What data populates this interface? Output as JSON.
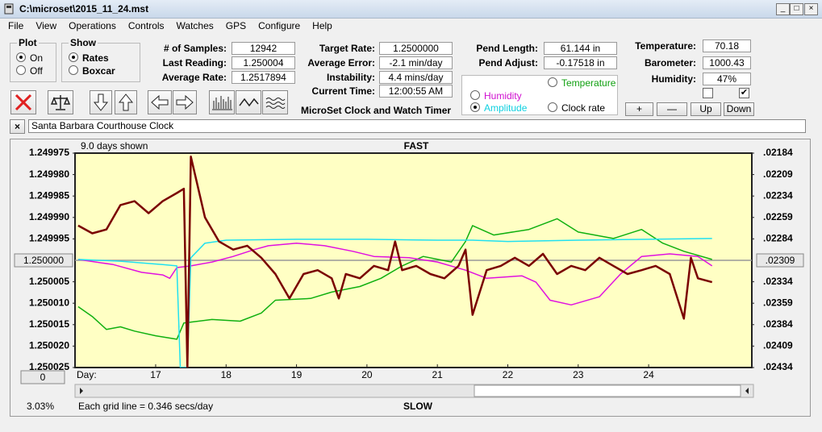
{
  "window": {
    "title": "C:\\microset\\2015_11_24.mst"
  },
  "menu": [
    "File",
    "View",
    "Operations",
    "Controls",
    "Watches",
    "GPS",
    "Configure",
    "Help"
  ],
  "plot_group": {
    "label": "Plot",
    "options": [
      "On",
      "Off"
    ]
  },
  "show_group": {
    "label": "Show",
    "options": [
      "Rates",
      "Boxcar"
    ]
  },
  "stats": [
    {
      "label": "# of Samples:",
      "value": "12942"
    },
    {
      "label": "Last Reading:",
      "value": "1.250004"
    },
    {
      "label": "Average Rate:",
      "value": "1.2517894"
    }
  ],
  "rates": [
    {
      "label": "Target Rate:",
      "value": "1.2500000"
    },
    {
      "label": "Average Error:",
      "value": "-2.1 min/day"
    },
    {
      "label": "Instability:",
      "value": "4.4 mins/day"
    },
    {
      "label": "Current Time:",
      "value": "12:00:55 AM"
    }
  ],
  "pendulum": [
    {
      "label": "Pend Length:",
      "value": "61.144 in"
    },
    {
      "label": "Pend Adjust:",
      "value": "-0.17518 in"
    }
  ],
  "environment": [
    {
      "label": "Temperature:",
      "value": "70.18"
    },
    {
      "label": "Barometer:",
      "value": "1000.43"
    },
    {
      "label": "Humidity:",
      "value": "47%"
    }
  ],
  "buttons": [
    "+",
    "—",
    "Up",
    "Down"
  ],
  "app_name": "MicroSet Clock and Watch Timer",
  "watch_name": "Santa Barbara Courthouse Clock",
  "chart_data": {
    "type": "line",
    "top_label": "FAST",
    "bottom_label": "SLOW",
    "days_shown": "9.0 days shown",
    "x_label": "Day:",
    "zoom": "0",
    "xlim": [
      15.855,
      25.465
    ],
    "xticks": [
      17,
      18,
      19,
      20,
      21,
      22,
      23,
      24
    ],
    "ylim": [
      1.250025,
      1.249975
    ],
    "yticks": [
      1.249975,
      {
        "value": 1.24998,
        "label": "1.249980"
      },
      1.249985,
      {
        "value": 1.24999,
        "label": "1.249990"
      },
      1.249995,
      {
        "value": 1.25,
        "label": "1.250000"
      },
      1.250005,
      {
        "value": 1.25001,
        "label": "1.250010"
      },
      1.250015,
      {
        "value": 1.25002,
        "label": "1.250020"
      },
      1.250025
    ],
    "y2lim": [
      0.02434,
      0.02184
    ],
    "y2ticks": [
      {
        "value": 0.02184,
        "label": ".02184"
      },
      {
        "value": 0.02209,
        "label": ".02209"
      },
      {
        "value": 0.02234,
        "label": ".02234"
      },
      {
        "value": 0.02259,
        "label": ".02259"
      },
      {
        "value": 0.02284,
        "label": ".02284"
      },
      {
        "value": 0.02309,
        "label": ".02309"
      },
      {
        "value": 0.02334,
        "label": ".02334"
      },
      {
        "value": 0.02359,
        "label": ".02359"
      },
      {
        "value": 0.02384,
        "label": ".02384"
      },
      {
        "value": 0.02409,
        "label": ".02409"
      },
      {
        "value": 0.02434,
        "label": ".02434"
      }
    ],
    "series": [
      {
        "name": "Temperature",
        "color": "#10b010",
        "x": [
          15.9,
          16.1,
          16.3,
          16.5,
          16.7,
          17.0,
          17.3,
          17.4,
          17.8,
          18.2,
          18.5,
          18.7,
          19.2,
          19.5,
          19.9,
          20.2,
          20.5,
          20.8,
          21.2,
          21.4,
          21.5,
          21.8,
          22.3,
          22.7,
          23.0,
          23.5,
          23.9,
          24.2,
          24.5,
          24.9
        ],
        "values": [
          1.2500108,
          1.2500131,
          1.2500161,
          1.2500155,
          1.2500165,
          1.2500176,
          1.2500184,
          1.2500146,
          1.2500138,
          1.2500142,
          1.2500123,
          1.2500093,
          1.2500089,
          1.2500074,
          1.2500061,
          1.2500042,
          1.2500013,
          1.2499991,
          1.2500004,
          1.2499956,
          1.2499919,
          1.2499941,
          1.2499928,
          1.2499903,
          1.2499934,
          1.2499949,
          1.2499928,
          1.249996,
          1.2499979,
          1.2499998
        ]
      },
      {
        "name": "Humidity",
        "color": "#e010e0",
        "x": [
          15.9,
          16.4,
          16.8,
          17.1,
          17.2,
          17.3,
          17.5,
          17.8,
          18.1,
          18.4,
          18.6,
          19.0,
          19.4,
          19.8,
          20.1,
          20.6,
          21.0,
          21.4,
          21.7,
          22.2,
          22.4,
          22.6,
          22.9,
          23.3,
          23.6,
          23.9,
          24.3,
          24.7,
          24.9
        ],
        "values": [
          1.2499998,
          1.250001,
          1.2500028,
          1.2500034,
          1.2500042,
          1.2500017,
          1.2500013,
          1.2500004,
          1.2499991,
          1.2499975,
          1.2499966,
          1.249996,
          1.2499966,
          1.2499979,
          1.2499991,
          1.2499994,
          1.2500004,
          1.2500023,
          1.2500042,
          1.2500036,
          1.2500051,
          1.2500093,
          1.2500104,
          1.2500085,
          1.2500032,
          1.2499991,
          1.2499985,
          1.2499991,
          1.2500013
        ]
      },
      {
        "name": "Amplitude",
        "color": "#20e0f0",
        "x": [
          15.9,
          16.5,
          17.1,
          17.3,
          17.35,
          17.45,
          17.5,
          17.7,
          18.0,
          19.0,
          20.0,
          21.0,
          21.5,
          22.0,
          23.0,
          24.0,
          24.9
        ],
        "values": [
          1.2499998,
          1.2500002,
          1.250001,
          1.2500013,
          1.250025,
          1.250025,
          1.2499994,
          1.249996,
          1.2499953,
          1.2499951,
          1.2499951,
          1.2499953,
          1.2499953,
          1.2499956,
          1.2499953,
          1.2499951,
          1.2499949
        ]
      },
      {
        "name": "Clock rate",
        "color": "#7a0000",
        "x": [
          15.9,
          16.1,
          16.3,
          16.5,
          16.7,
          16.9,
          17.1,
          17.3,
          17.4,
          17.45,
          17.5,
          17.7,
          17.9,
          18.1,
          18.3,
          18.5,
          18.7,
          18.9,
          19.1,
          19.3,
          19.5,
          19.6,
          19.7,
          19.9,
          20.1,
          20.3,
          20.4,
          20.5,
          20.7,
          20.9,
          21.1,
          21.3,
          21.4,
          21.5,
          21.7,
          21.9,
          22.1,
          22.3,
          22.5,
          22.7,
          22.9,
          23.1,
          23.3,
          23.5,
          23.7,
          23.9,
          24.1,
          24.3,
          24.5,
          24.6,
          24.7,
          24.9
        ],
        "values": [
          1.2499919,
          1.2499937,
          1.2499928,
          1.2499871,
          1.2499862,
          1.249989,
          1.2499862,
          1.2499843,
          1.2499833,
          1.250025,
          1.2499758,
          1.24999,
          1.2499956,
          1.2499975,
          1.2499966,
          1.2499994,
          1.2500032,
          1.2500089,
          1.2500032,
          1.2500023,
          1.2500042,
          1.2500089,
          1.2500032,
          1.2500042,
          1.2500013,
          1.2500023,
          1.2499956,
          1.2500023,
          1.2500013,
          1.2500032,
          1.2500042,
          1.2500013,
          1.2499975,
          1.2500127,
          1.2500023,
          1.2500013,
          1.2499994,
          1.2500013,
          1.2499985,
          1.2500032,
          1.2500013,
          1.2500023,
          1.2499994,
          1.2500013,
          1.2500032,
          1.2500023,
          1.2500013,
          1.2500032,
          1.2500136,
          1.2499994,
          1.2500042,
          1.2500051
        ]
      }
    ]
  },
  "status": {
    "percent": "3.03%",
    "grid_note": "Each grid line = 0.346 secs/day"
  }
}
